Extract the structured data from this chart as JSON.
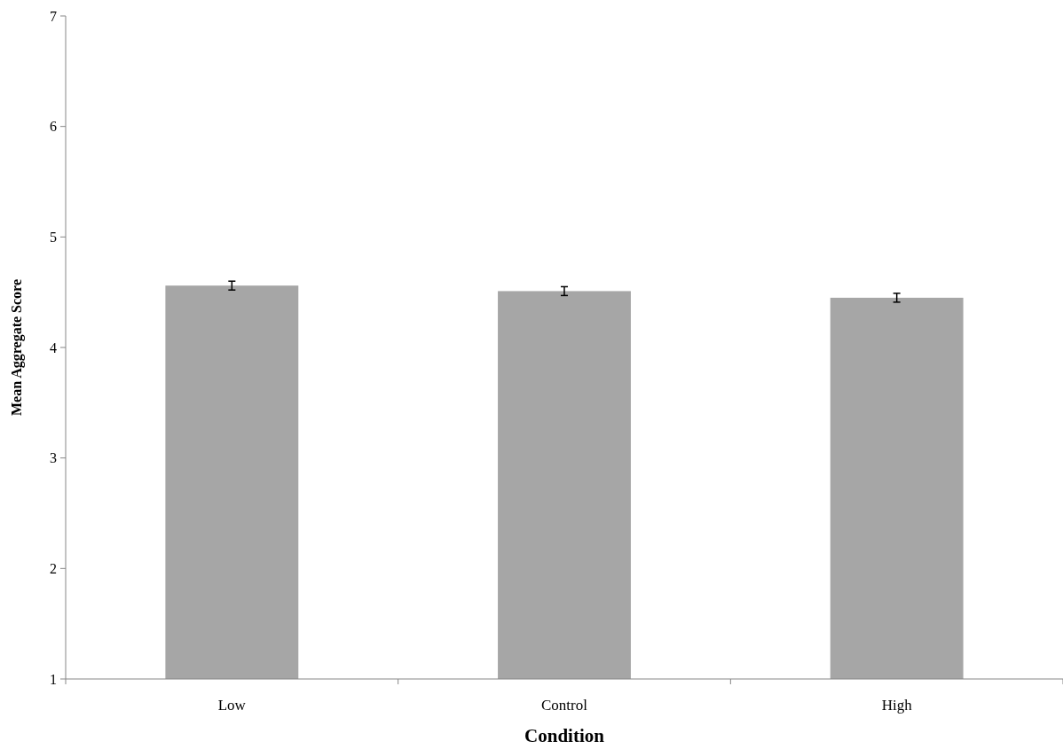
{
  "chart_data": {
    "type": "bar",
    "xlabel": "Condition",
    "ylabel": "Mean Aggregate Score",
    "categories": [
      "Low",
      "Control",
      "High"
    ],
    "values": [
      4.56,
      4.51,
      4.45
    ],
    "errors": [
      0.04,
      0.04,
      0.04
    ],
    "color": "#a6a6a6",
    "ylim": [
      1,
      7
    ],
    "yticks": [
      1,
      2,
      3,
      4,
      5,
      6,
      7
    ],
    "grid": false
  }
}
